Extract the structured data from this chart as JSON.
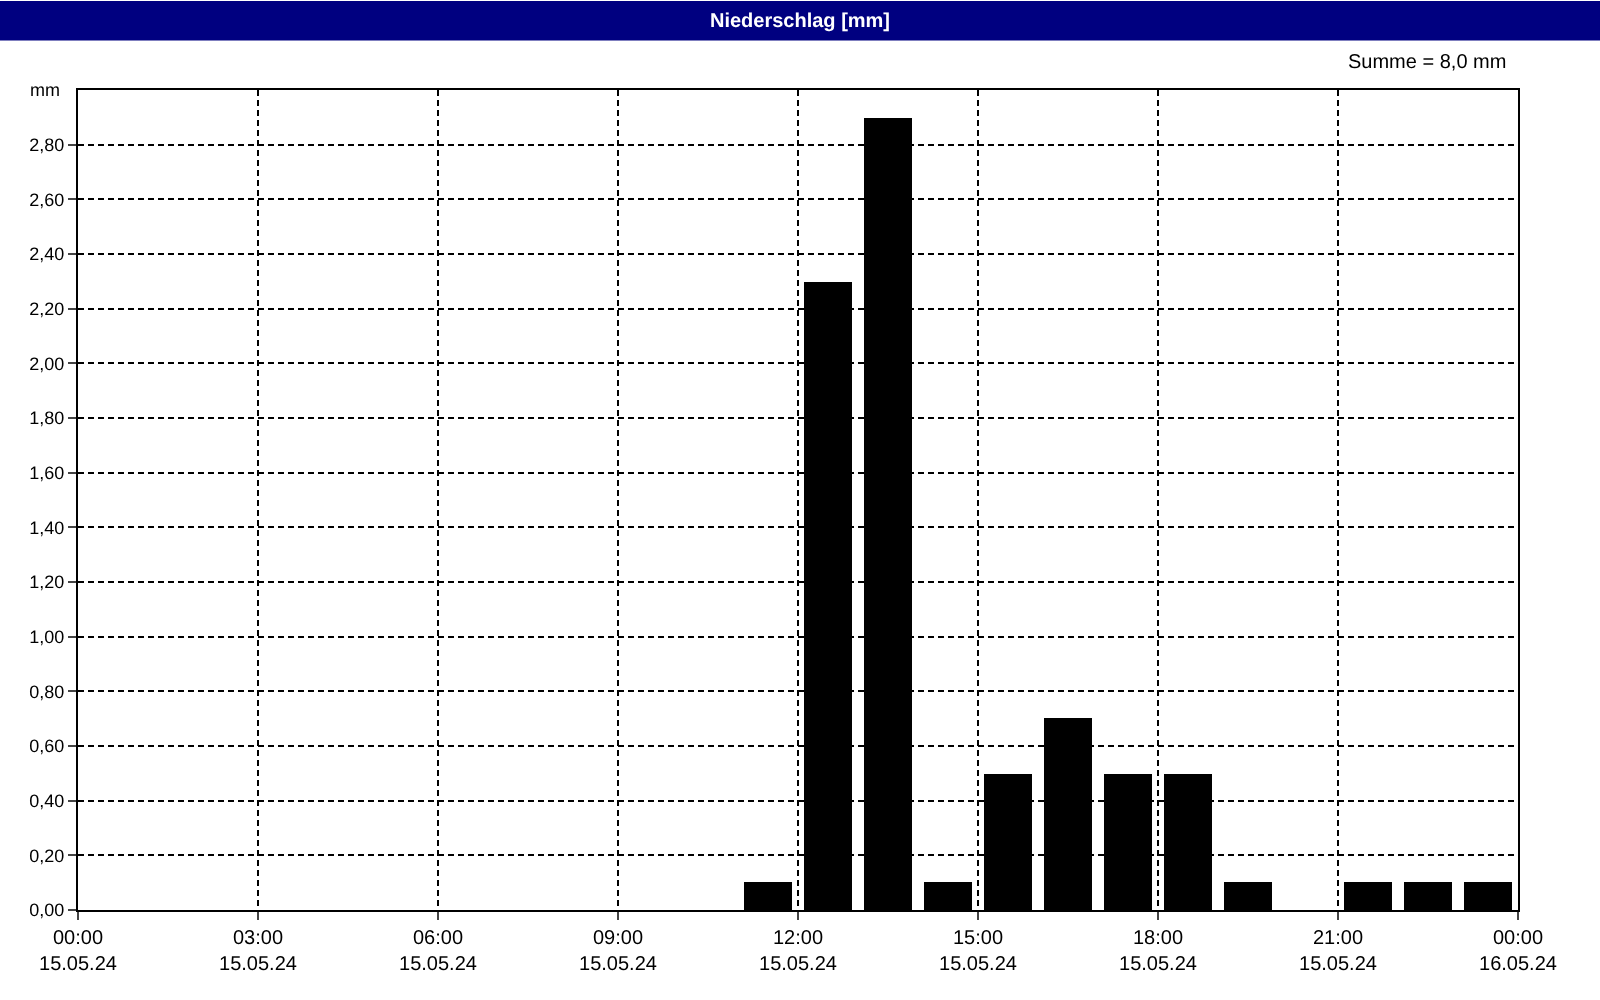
{
  "chart_data": {
    "type": "bar",
    "title": "Niederschlag [mm]",
    "ylabel": "mm",
    "annotations": [
      "Summe = 8,0 mm"
    ],
    "x": [
      "--05-15T11:30",
      "--05-15T12:30",
      "--05-15T13:30",
      "--05-15T14:30",
      "--05-15T15:30",
      "--05-15T16:30",
      "--05-15T17:30",
      "--05-15T18:30",
      "--05-15T19:30",
      "--05-15T21:30",
      "--05-15T22:30",
      "--05-15T23:30"
    ],
    "values": [
      0.1,
      2.3,
      2.9,
      0.1,
      0.5,
      0.7,
      0.5,
      0.5,
      0.1,
      0.1,
      0.1,
      0.1
    ],
    "color": "#000000",
    "xlim": [
      "--05-15T00:00",
      "--05-16T00:00"
    ],
    "xticks": [
      {
        "value": "--05-15T00:00",
        "label": "00:00\n15.05.24"
      },
      {
        "value": "--05-15T03:00",
        "label": "03:00\n15.05.24"
      },
      {
        "value": "--05-15T06:00",
        "label": "06:00\n15.05.24"
      },
      {
        "value": "--05-15T09:00",
        "label": "09:00\n15.05.24"
      },
      {
        "value": "--05-15T12:00",
        "label": "12:00\n15.05.24"
      },
      {
        "value": "--05-15T15:00",
        "label": "15:00\n15.05.24"
      },
      {
        "value": "--05-15T18:00",
        "label": "18:00\n15.05.24"
      },
      {
        "value": "--05-15T21:00",
        "label": "21:00\n15.05.24"
      },
      {
        "value": "--05-16T00:00",
        "label": "00:00\n16.05.24"
      }
    ],
    "ylim": [
      0,
      3.0
    ],
    "yticks": [
      {
        "value": 0,
        "label": "0,00"
      },
      {
        "value": 0.2,
        "label": "0,20"
      },
      {
        "value": 0.4,
        "label": "0,40"
      },
      {
        "value": 0.6,
        "label": "0,60"
      },
      {
        "value": 0.8,
        "label": "0,80"
      },
      {
        "value": 1.0,
        "label": "1,00"
      },
      {
        "value": 1.2,
        "label": "1,20"
      },
      {
        "value": 1.4,
        "label": "1,40"
      },
      {
        "value": 1.6,
        "label": "1,60"
      },
      {
        "value": 1.8,
        "label": "1,80"
      },
      {
        "value": 2.0,
        "label": "2,00"
      },
      {
        "value": 2.2,
        "label": "2,20"
      },
      {
        "value": 2.4,
        "label": "2,40"
      },
      {
        "value": 2.6,
        "label": "2,60"
      },
      {
        "value": 2.8,
        "label": "2,80"
      }
    ],
    "grid": true
  }
}
